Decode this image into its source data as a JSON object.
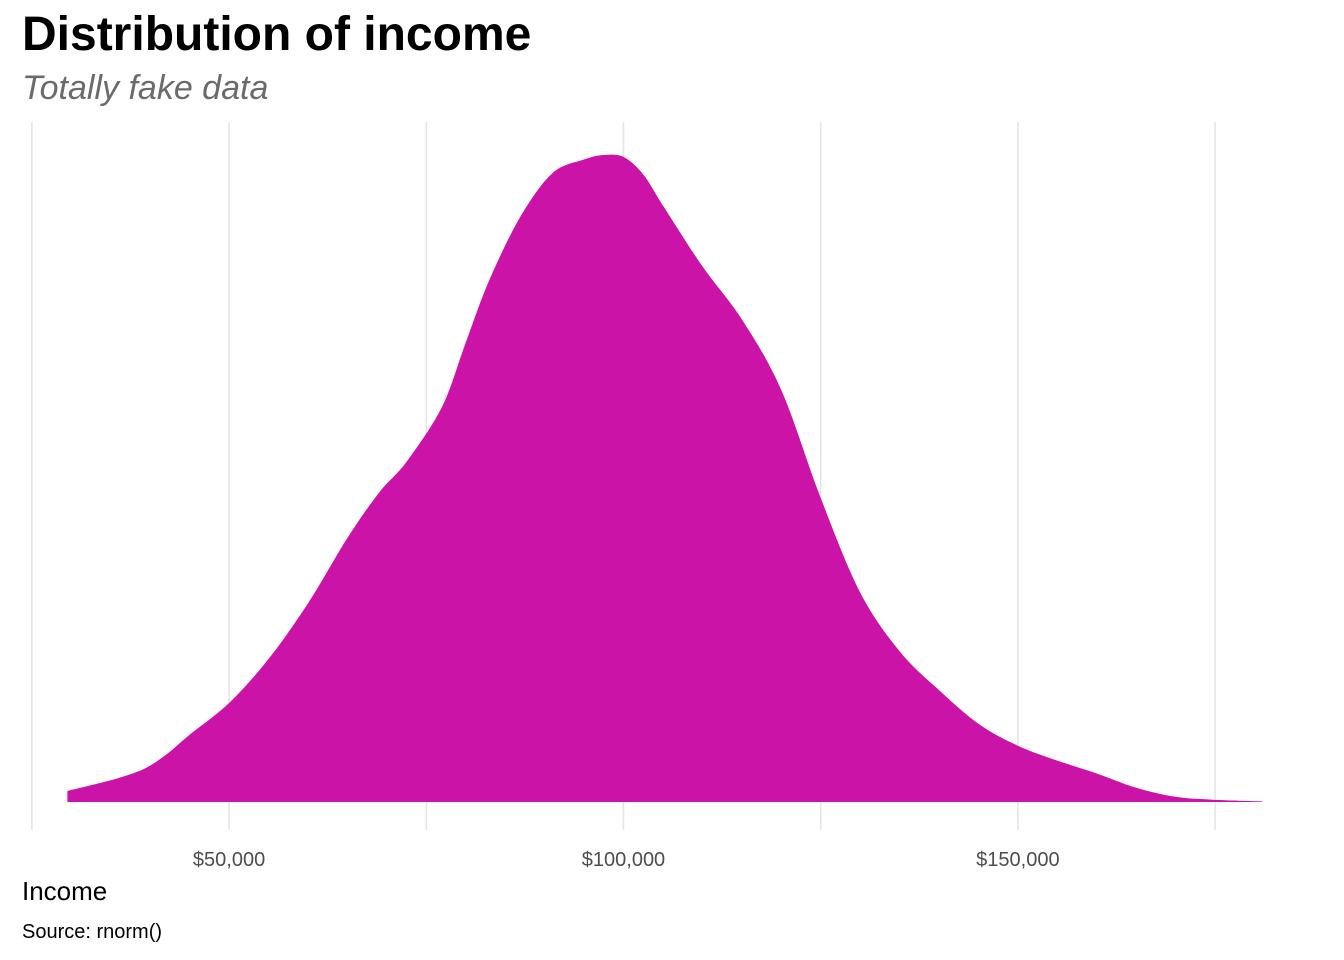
{
  "chart_data": {
    "type": "area",
    "title": "Distribution of income",
    "subtitle": "Totally fake data",
    "xlabel": "Income",
    "ylabel": "",
    "caption": "Source: rnorm()",
    "fill_color": "#CC13A8",
    "grid_color": "#E5E5E5",
    "grid": "vertical major and minor",
    "y_axis": "hidden",
    "xlim": [
      24000,
      184500
    ],
    "ylim": [
      0,
      1
    ],
    "x_ticks": [
      50000,
      100000,
      150000
    ],
    "x_tick_labels": [
      "$50,000",
      "$100,000",
      "$150,000"
    ],
    "x_minor_gridlines": [
      25000,
      75000,
      125000,
      175000
    ],
    "series": [
      {
        "x": [
          29500,
          34500,
          37000,
          39500,
          42000,
          45000,
          50000,
          55000,
          60000,
          65000,
          69000,
          72500,
          77000,
          80000,
          83000,
          87000,
          91000,
          95000,
          97500,
          100000,
          102500,
          105000,
          110000,
          115000,
          120000,
          125000,
          130000,
          135000,
          140000,
          145000,
          150000,
          155000,
          160000,
          165000,
          170000,
          174000,
          178000,
          181000
        ],
        "y": [
          0.017,
          0.032,
          0.041,
          0.053,
          0.073,
          0.104,
          0.153,
          0.221,
          0.307,
          0.408,
          0.478,
          0.526,
          0.611,
          0.71,
          0.807,
          0.906,
          0.972,
          0.993,
          1.0,
          0.997,
          0.97,
          0.922,
          0.828,
          0.746,
          0.637,
          0.47,
          0.324,
          0.233,
          0.173,
          0.121,
          0.087,
          0.064,
          0.044,
          0.022,
          0.008,
          0.004,
          0.002,
          0.001
        ]
      }
    ]
  }
}
